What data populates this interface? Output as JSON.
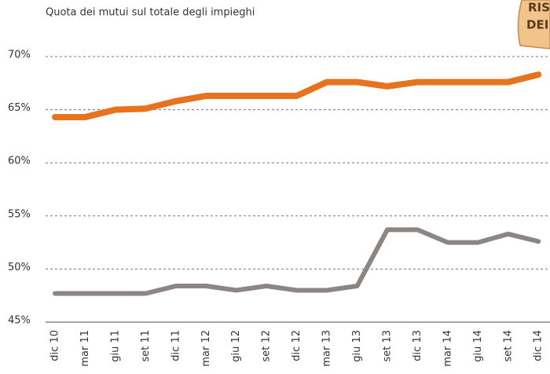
{
  "chart_data": {
    "type": "line",
    "title": "Quota dei mutui sul totale degli impieghi",
    "badge": [
      "RIS",
      "DEI"
    ],
    "categories": [
      "dic 10",
      "mar 11",
      "giu 11",
      "set 11",
      "dic 11",
      "mar 12",
      "giu 12",
      "set 12",
      "dic 12",
      "mar 13",
      "giu 13",
      "set 13",
      "dic 13",
      "mar 14",
      "giu 14",
      "set 14",
      "dic 14"
    ],
    "series": [
      {
        "color": "#e8731f",
        "values": [
          64.3,
          64.3,
          65.0,
          65.1,
          65.8,
          66.3,
          66.3,
          66.3,
          66.3,
          67.6,
          67.6,
          67.2,
          67.6,
          67.6,
          67.6,
          67.6,
          68.3
        ]
      },
      {
        "color": "#8c8584",
        "values": [
          47.7,
          47.7,
          47.7,
          47.7,
          48.4,
          48.4,
          48.0,
          48.4,
          48.0,
          48.0,
          48.4,
          53.7,
          53.7,
          52.5,
          52.5,
          53.3,
          52.6
        ]
      }
    ],
    "ylim": [
      45,
      70
    ],
    "yticks": [
      {
        "value": 45,
        "label": "45%"
      },
      {
        "value": 50,
        "label": "50%"
      },
      {
        "value": 55,
        "label": "55%"
      },
      {
        "value": 60,
        "label": "60%"
      },
      {
        "value": 65,
        "label": "65%"
      },
      {
        "value": 70,
        "label": "70%"
      }
    ],
    "grid": true
  }
}
